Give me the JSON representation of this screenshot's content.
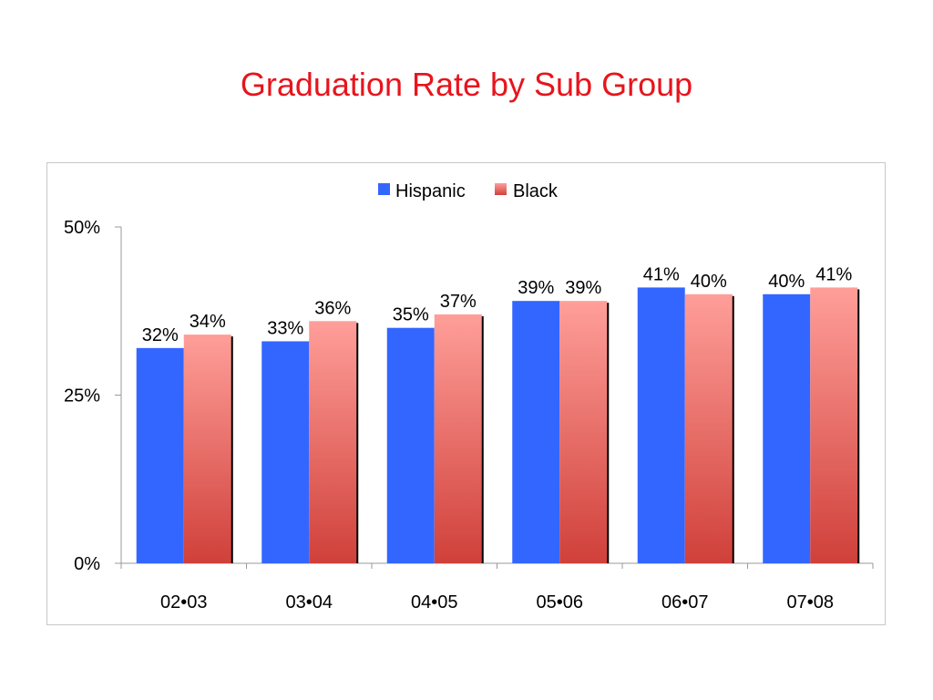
{
  "slide": {
    "title": "Graduation Rate by Sub Group"
  },
  "chart_data": {
    "type": "bar",
    "categories": [
      "02•03",
      "03•04",
      "04•05",
      "05•06",
      "06•07",
      "07•08"
    ],
    "series": [
      {
        "name": "Hispanic",
        "values": [
          32,
          33,
          35,
          39,
          41,
          40
        ],
        "color": "#3366ff"
      },
      {
        "name": "Black",
        "values": [
          34,
          36,
          37,
          39,
          40,
          41
        ],
        "color_top": "#ff9e99",
        "color_bottom": "#d0403a"
      }
    ],
    "data_labels": [
      [
        "32%",
        "33%",
        "35%",
        "39%",
        "41%",
        "40%"
      ],
      [
        "34%",
        "36%",
        "37%",
        "39%",
        "40%",
        "41%"
      ]
    ],
    "title": "",
    "xlabel": "",
    "ylabel": "",
    "ylim": [
      0,
      50
    ],
    "y_ticks": [
      {
        "value": 0,
        "label": "0%"
      },
      {
        "value": 25,
        "label": "25%"
      },
      {
        "value": 50,
        "label": "50%"
      }
    ],
    "grid": false,
    "legend_position": "top"
  }
}
